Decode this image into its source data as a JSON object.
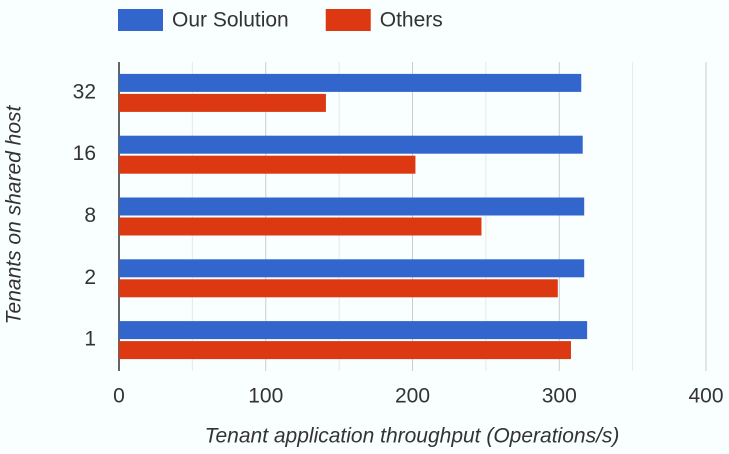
{
  "chart_data": {
    "type": "hbar",
    "y_label": "Tenants on shared host",
    "x_label": "Tenant application throughput (Operations/s)",
    "categories": [
      "32",
      "16",
      "8",
      "2",
      "1"
    ],
    "series": [
      {
        "name": "Our Solution",
        "color": "#3366cc",
        "values": [
          315,
          316,
          317,
          317,
          319
        ]
      },
      {
        "name": "Others",
        "color": "#dc3912",
        "values": [
          141,
          202,
          247,
          299,
          308
        ]
      }
    ],
    "xlim": [
      0,
      400
    ],
    "xticks": [
      0,
      100,
      200,
      300,
      400
    ],
    "minor_xticks": [
      50,
      150,
      250,
      350
    ],
    "grid": true,
    "legend": "top"
  }
}
